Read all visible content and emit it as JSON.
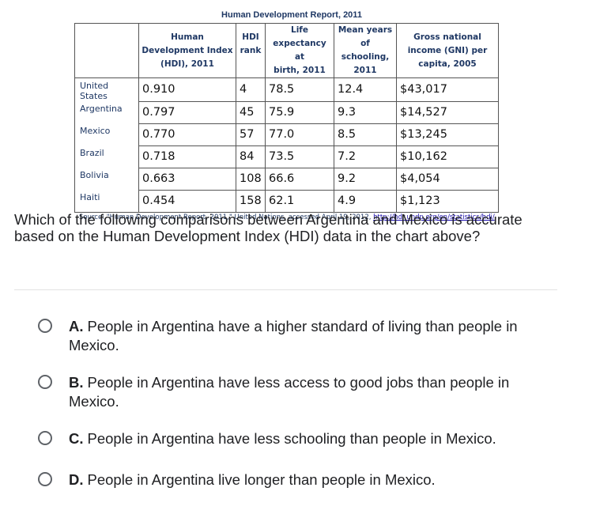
{
  "table": {
    "title": "Human Development Report, 2011",
    "headers": [
      {
        "lines": [
          "Human",
          "Development Index",
          "(HDI), 2011"
        ]
      },
      {
        "lines": [
          "HDI",
          "rank"
        ]
      },
      {
        "lines": [
          "Life",
          "expectancy at",
          "birth, 2011"
        ]
      },
      {
        "lines": [
          "Mean years",
          "of schooling,",
          "2011"
        ]
      },
      {
        "lines": [
          "Gross national",
          "income (GNI) per",
          "capita, 2005"
        ]
      }
    ],
    "rows": [
      {
        "country": "United States",
        "hdi": "0.910",
        "rank": "4",
        "life": "78.5",
        "school": "12.4",
        "gni": "$43,017"
      },
      {
        "country": "Argentina",
        "hdi": "0.797",
        "rank": "45",
        "life": "75.9",
        "school": "9.3",
        "gni": "$14,527"
      },
      {
        "country": "Mexico",
        "hdi": "0.770",
        "rank": "57",
        "life": "77.0",
        "school": "8.5",
        "gni": "$13,245"
      },
      {
        "country": "Brazil",
        "hdi": "0.718",
        "rank": "84",
        "life": "73.5",
        "school": "7.2",
        "gni": "$10,162"
      },
      {
        "country": "Bolivia",
        "hdi": "0.663",
        "rank": "108",
        "life": "66.6",
        "school": "9.2",
        "gni": "$4,054"
      },
      {
        "country": "Haiti",
        "hdi": "0.454",
        "rank": "158",
        "life": "62.1",
        "school": "4.9",
        "gni": "$1,123"
      }
    ],
    "source_text": "Source: \"Human Development Report, 2011,\" United Nations, accessed April 19, 2012, ",
    "source_link": "http://hdr.undp.org/en/statistics/hdi/",
    "source_end": "."
  },
  "question": "Which of the following comparisons between Argentina and Mexico is accurate based on the Human Development Index (HDI) data in the chart above?",
  "options": [
    {
      "letter": "A.",
      "text": "People in Argentina have a higher standard of living than people in Mexico."
    },
    {
      "letter": "B.",
      "text": "People in Argentina have less access to good jobs than people in Mexico."
    },
    {
      "letter": "C.",
      "text": "People in Argentina have less schooling than people in Mexico."
    },
    {
      "letter": "D.",
      "text": "People in Argentina live longer than people in Mexico."
    }
  ],
  "colors": {
    "header_text": "#1f3864",
    "radio_border": "#5f6368",
    "divider": "#e2e2e2"
  }
}
